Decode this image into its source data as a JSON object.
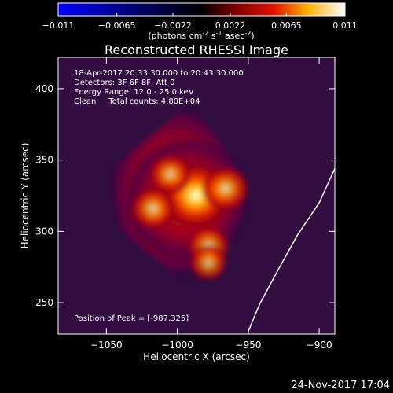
{
  "chart_data": {
    "type": "heatmap",
    "title": "Reconstructed RHESSI Image",
    "xlabel": "Heliocentric X (arcsec)",
    "ylabel": "Heliocentric Y (arcsec)",
    "xlim": [
      -1084,
      -889
    ],
    "ylim": [
      228,
      422
    ],
    "xticks": [
      -1050,
      -1000,
      -950,
      -900
    ],
    "yticks": [
      250,
      300,
      350,
      400
    ],
    "colorbar": {
      "colormap": "blue-black-red-yellow-white",
      "range": [
        -0.011,
        0.011
      ],
      "ticks": [
        "-0.011",
        "-0.0065",
        "-0.0022",
        "0.0022",
        "0.0065",
        "0.011"
      ],
      "unit_label": "(photons cm",
      "unit_sup1": "-2",
      "unit_mid": " s",
      "unit_sup2": "-1",
      "unit_mid2": " asec",
      "unit_sup3": "-2",
      "unit_close": ")"
    },
    "annotations": [
      "18-Apr-2017 20:33:30.000 to 20:43:30.000",
      "Detectors: 3F 6F 8F, Att 0",
      "Energy Range: 12.0 - 25.0 keV",
      "Clean     Total counts: 4.80E+04"
    ],
    "peak_label": "Position of Peak = [-987,325]",
    "peak": [
      -987,
      325
    ],
    "sources": [
      {
        "x": -987,
        "y": 325,
        "intensity": 1.0
      },
      {
        "x": -966,
        "y": 330,
        "intensity": 0.55
      },
      {
        "x": -1017,
        "y": 316,
        "intensity": 0.5
      },
      {
        "x": -1005,
        "y": 340,
        "intensity": 0.45
      },
      {
        "x": -978,
        "y": 290,
        "intensity": 0.45
      },
      {
        "x": -978,
        "y": 278,
        "intensity": 0.35
      }
    ],
    "limb_curve": [
      [
        -889,
        344
      ],
      [
        -900,
        320
      ],
      [
        -915,
        298
      ],
      [
        -929,
        273
      ],
      [
        -942,
        249
      ],
      [
        -950,
        230
      ]
    ]
  },
  "footer_timestamp": "24-Nov-2017 17:04"
}
